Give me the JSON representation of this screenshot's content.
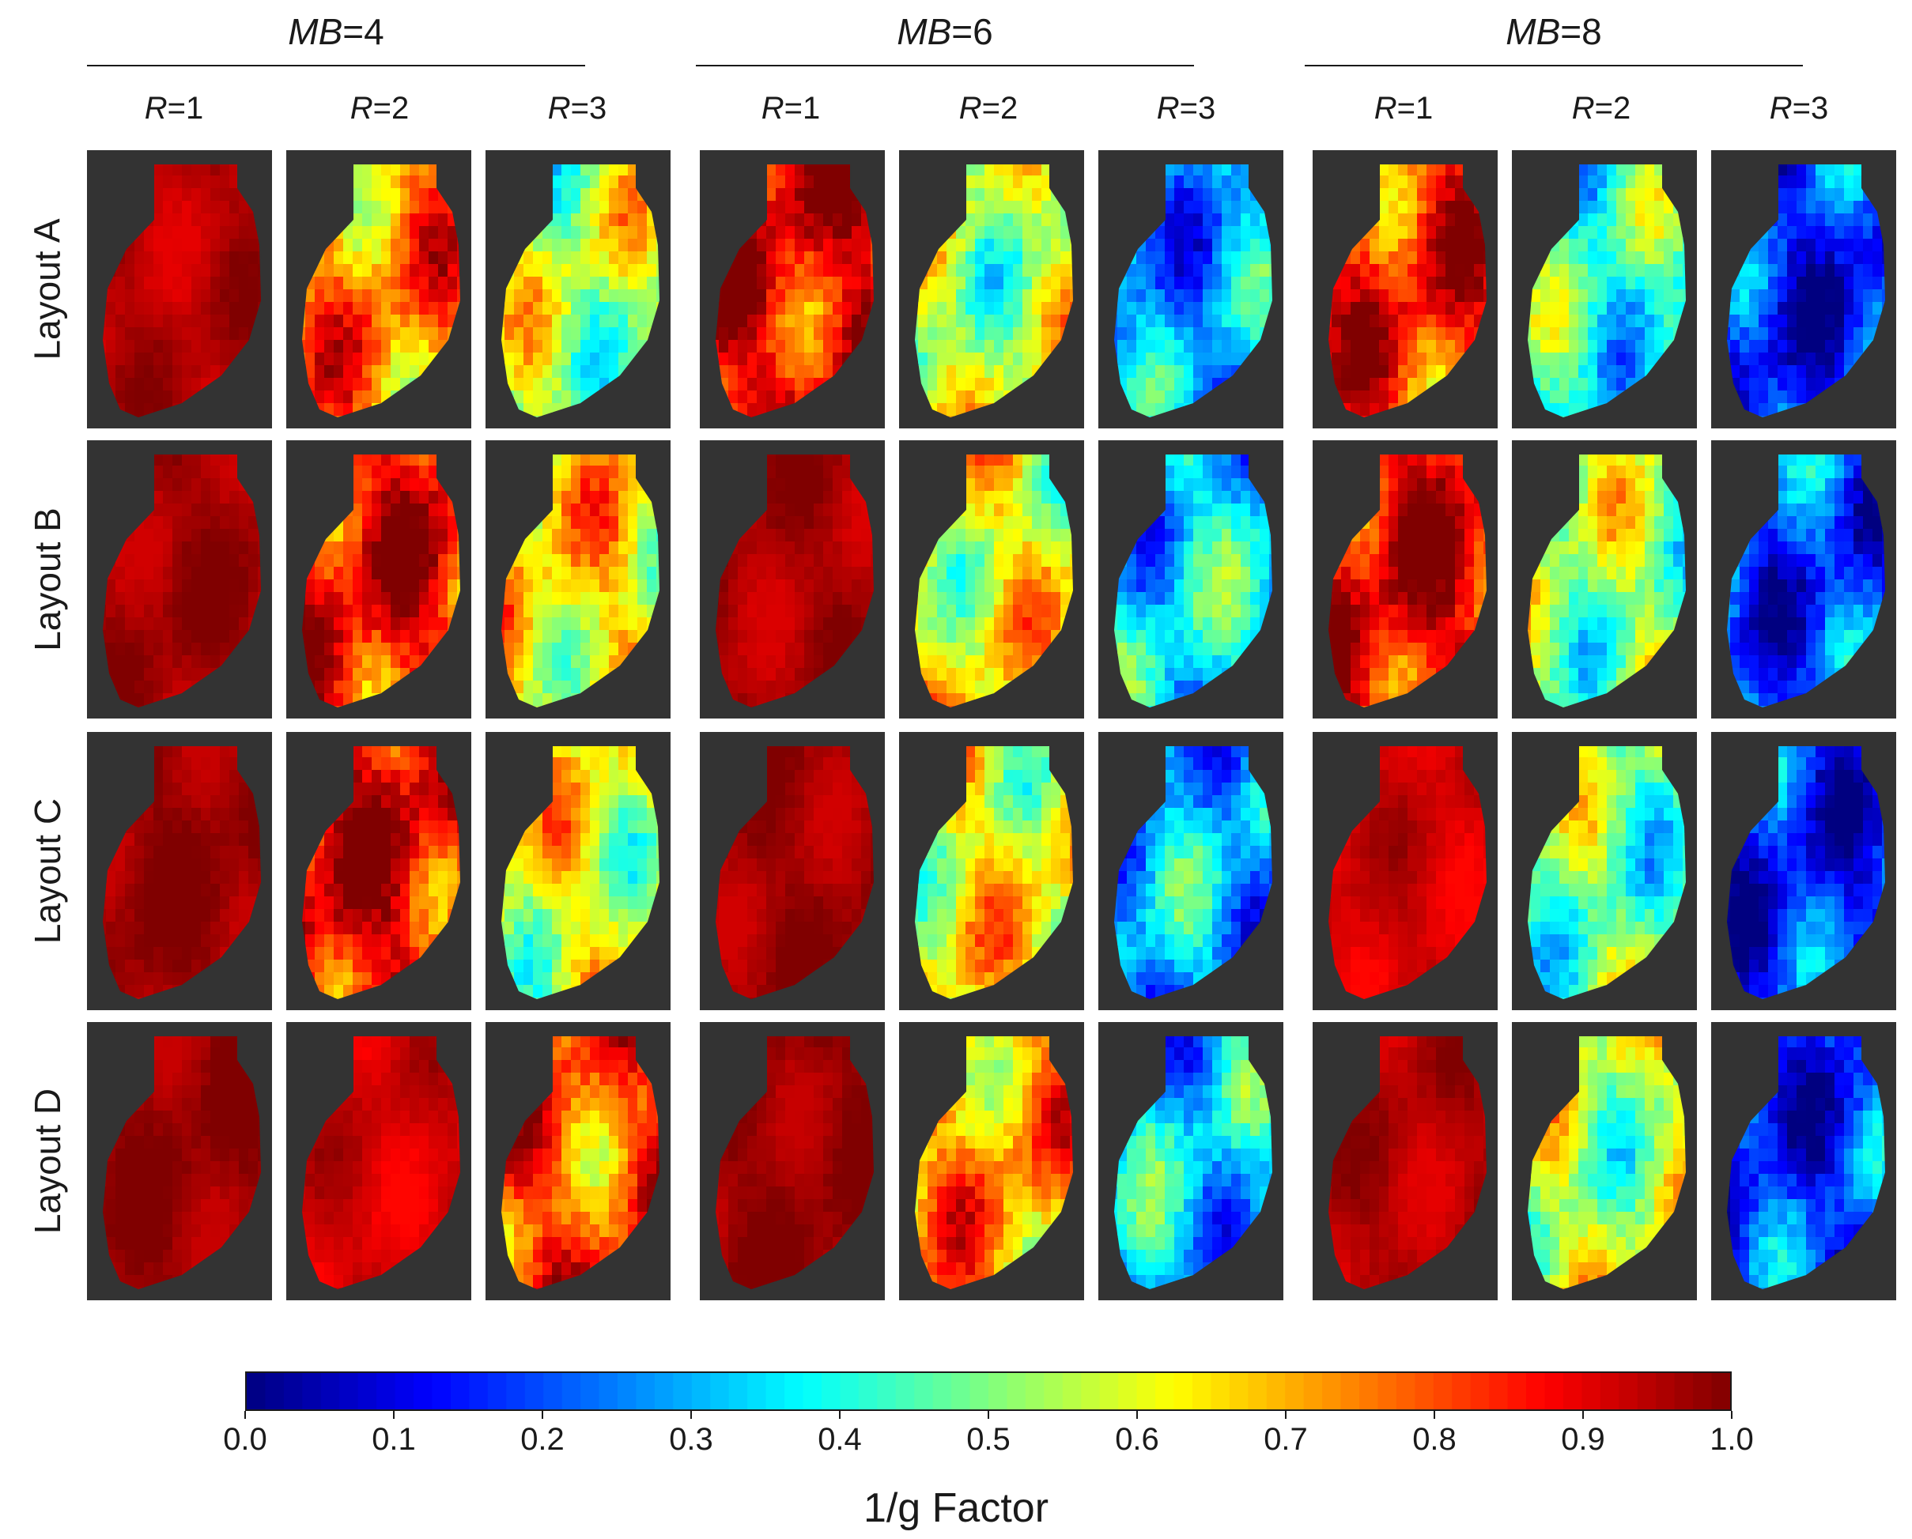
{
  "chart_data": {
    "type": "heatmap",
    "title": "",
    "column_groups": [
      {
        "prefix": "MB",
        "value": "4"
      },
      {
        "prefix": "MB",
        "value": "6"
      },
      {
        "prefix": "MB",
        "value": "8"
      }
    ],
    "subcolumns": [
      {
        "prefix": "R",
        "value": "1"
      },
      {
        "prefix": "R",
        "value": "2"
      },
      {
        "prefix": "R",
        "value": "3"
      }
    ],
    "rows": [
      "Layout A",
      "Layout B",
      "Layout C",
      "Layout D"
    ],
    "mean_values": [
      [
        0.95,
        0.75,
        0.55,
        0.9,
        0.55,
        0.28,
        0.85,
        0.42,
        0.15
      ],
      [
        0.97,
        0.88,
        0.65,
        0.96,
        0.62,
        0.35,
        0.9,
        0.52,
        0.18
      ],
      [
        0.98,
        0.9,
        0.6,
        0.97,
        0.62,
        0.3,
        0.92,
        0.48,
        0.15
      ],
      [
        0.98,
        0.92,
        0.8,
        0.98,
        0.72,
        0.33,
        0.95,
        0.55,
        0.17
      ]
    ],
    "colormap": "jet",
    "colorbar": {
      "min": 0.0,
      "max": 1.0,
      "ticks": [
        "0.0",
        "0.1",
        "0.2",
        "0.3",
        "0.4",
        "0.5",
        "0.6",
        "0.7",
        "0.8",
        "0.9",
        "1.0"
      ],
      "label": "1/g Factor"
    },
    "background_color": "#333333"
  }
}
